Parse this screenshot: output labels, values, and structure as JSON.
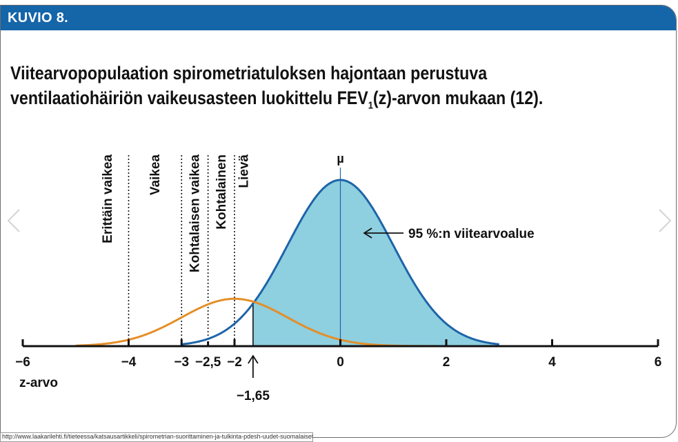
{
  "banner": {
    "label": "KUVIO 8."
  },
  "title": {
    "line1": "Viitearvopopulaation spirometriatuloksen hajontaan perustuva",
    "line2_pre": "ventilaatiohäiriön vaikeusasteen luokittelu FEV",
    "line2_sub": "1",
    "line2_post": "(z)-arvon mukaan (12)."
  },
  "colors": {
    "banner": "#1565a9",
    "reference_curve": "#1d64a8",
    "reference_fill": "#8ecfe0",
    "patient_curve": "#e58e27",
    "axis": "#111111",
    "threshold_lines": "#111111"
  },
  "chart_data": {
    "type": "line",
    "xlabel": "z-arvo",
    "ylabel": "",
    "xlim": [
      -6,
      6
    ],
    "x_ticks": [
      -6,
      -4,
      -3,
      -2.5,
      -2,
      0,
      2,
      4,
      6
    ],
    "x_tick_labels": [
      "−6",
      "−4",
      "−3",
      "−2,5",
      "−2",
      "0",
      "2",
      "4",
      "6"
    ],
    "grid": false,
    "series": [
      {
        "name": "",
        "kind": "normal",
        "mean": 0,
        "sd": 1,
        "x_range": [
          -3,
          3
        ],
        "fill_from": -1.65
      },
      {
        "name": "",
        "kind": "normal",
        "mean": -2,
        "sd": 1,
        "x_range": [
          -5,
          5
        ]
      }
    ],
    "mean_marker": {
      "x": 0,
      "label": "µ"
    },
    "threshold_lines": [
      -4,
      -3,
      -2.5,
      -2
    ],
    "lower_limit_line": -1.65,
    "severity_categories": [
      {
        "label": "Erittäin vaikea",
        "x": -4.4
      },
      {
        "label": "Vaikea",
        "x": -3.5
      },
      {
        "label": "Kohtalaisen vaikea",
        "x": -2.75
      },
      {
        "label": "Kohtalainen",
        "x": -2.25
      },
      {
        "label": "Lievä",
        "x": -1.825
      }
    ],
    "annotations": [
      {
        "text": "95 %:n viitearvoalue",
        "x": 0.45,
        "arrow": "left"
      },
      {
        "text": "−1,65",
        "x": -1.65,
        "arrow": "up"
      }
    ]
  },
  "footer": {
    "url": "http://www.laakarilehti.fi/tieteessa/katsausartikkeli/spirometrian-suorittaminen-ja-tulkinta-pdesh-uudet-suomalaiset-ja-me"
  }
}
